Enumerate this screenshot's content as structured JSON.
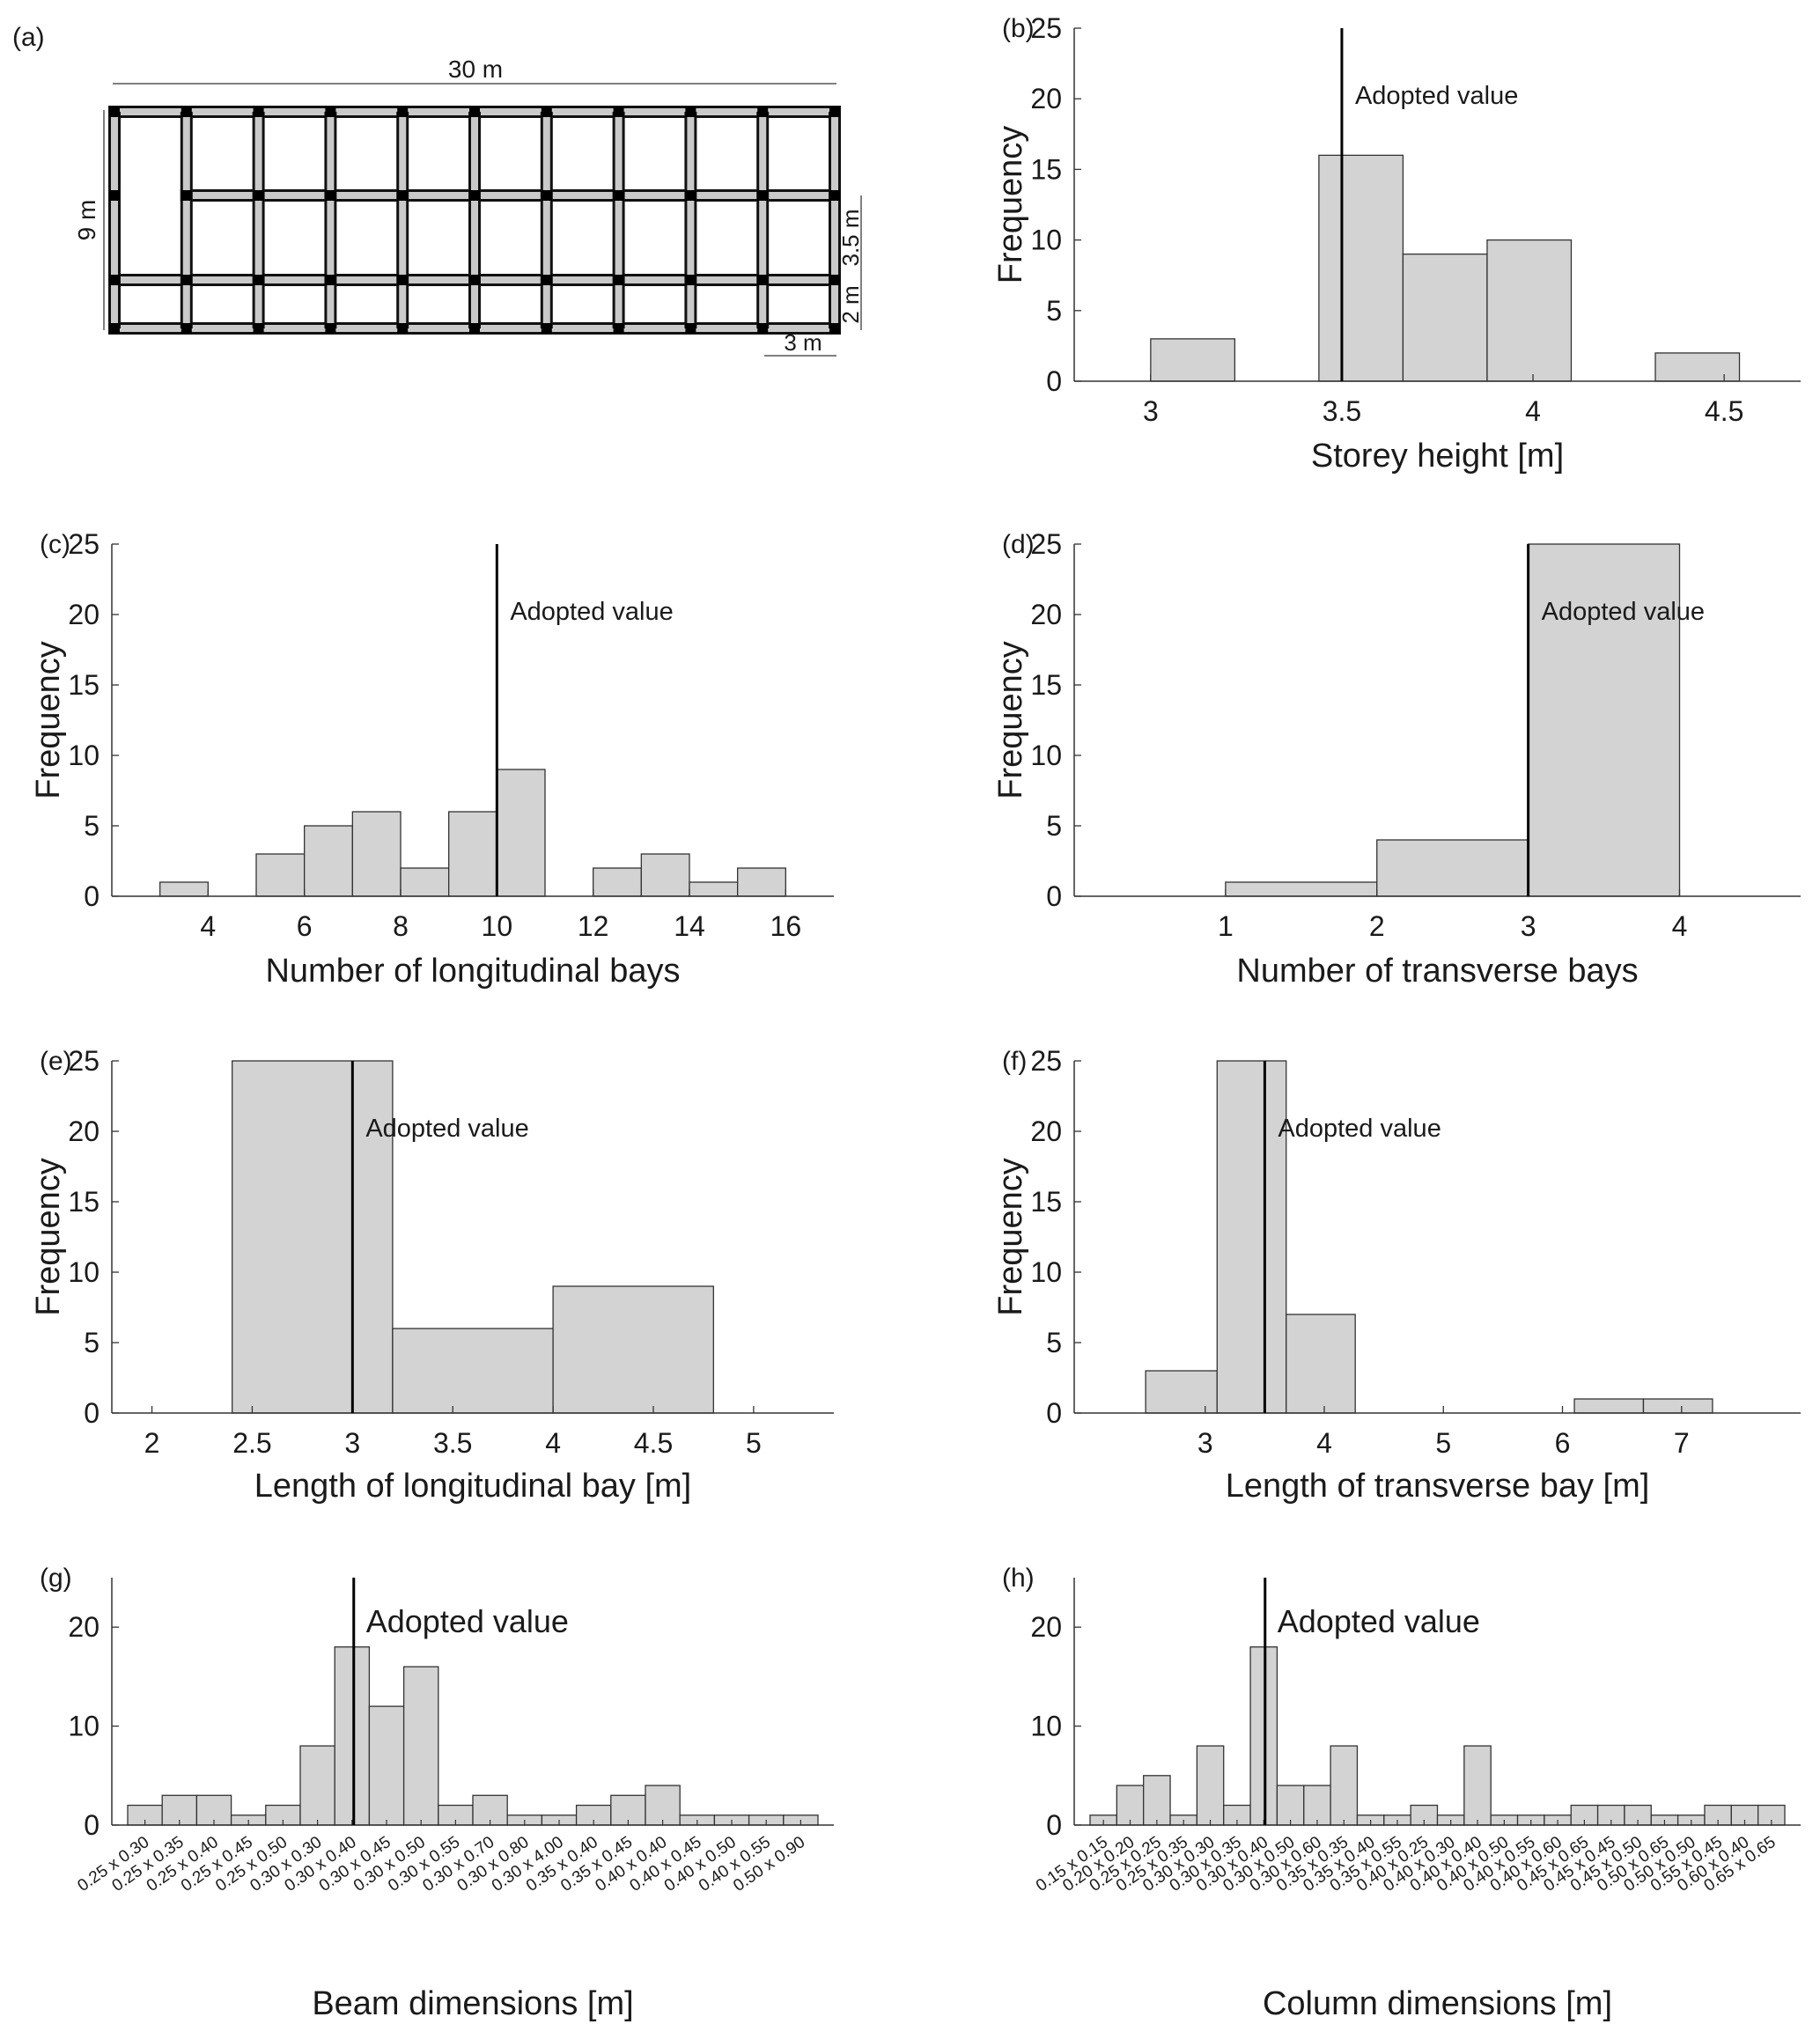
{
  "figure": {
    "plan": {
      "label": "(a)",
      "dim_total_length": "30 m",
      "dim_total_width": "9 m",
      "dim_bay_35": "3.5 m",
      "dim_bay_2": "2 m",
      "dim_bay_3": "3 m"
    }
  },
  "chart_data": [
    {
      "panel": "(b)",
      "type": "bar",
      "title": "",
      "xlabel": "Storey height [m]",
      "ylabel": "Frequency",
      "xlim": [
        2.8,
        4.7
      ],
      "ylim": [
        0,
        25
      ],
      "xticks": [
        3,
        3.5,
        4,
        4.5
      ],
      "yticks": [
        0,
        5,
        10,
        15,
        20,
        25
      ],
      "bins": [
        {
          "left": 3.0,
          "right": 3.22,
          "count": 3
        },
        {
          "left": 3.44,
          "right": 3.66,
          "count": 16
        },
        {
          "left": 3.66,
          "right": 3.88,
          "count": 9
        },
        {
          "left": 3.88,
          "right": 4.1,
          "count": 10
        },
        {
          "left": 4.32,
          "right": 4.54,
          "count": 2
        }
      ],
      "adopted_value": 3.5,
      "annotation": "Adopted value",
      "annotation_y": 20
    },
    {
      "panel": "(c)",
      "type": "bar",
      "title": "",
      "xlabel": "Number of longitudinal bays",
      "ylabel": "Frequency",
      "xlim": [
        2,
        17
      ],
      "ylim": [
        0,
        25
      ],
      "xticks": [
        4,
        6,
        8,
        10,
        12,
        14,
        16
      ],
      "yticks": [
        0,
        5,
        10,
        15,
        20,
        25
      ],
      "bins": [
        {
          "left": 3,
          "right": 4,
          "count": 1
        },
        {
          "left": 5,
          "right": 6,
          "count": 3
        },
        {
          "left": 6,
          "right": 7,
          "count": 5
        },
        {
          "left": 7,
          "right": 8,
          "count": 6
        },
        {
          "left": 8,
          "right": 9,
          "count": 2
        },
        {
          "left": 9,
          "right": 10,
          "count": 6
        },
        {
          "left": 10,
          "right": 11,
          "count": 9
        },
        {
          "left": 12,
          "right": 13,
          "count": 2
        },
        {
          "left": 13,
          "right": 14,
          "count": 3
        },
        {
          "left": 14,
          "right": 15,
          "count": 1
        },
        {
          "left": 15,
          "right": 16,
          "count": 2
        }
      ],
      "adopted_value": 10,
      "annotation": "Adopted value",
      "annotation_y": 20
    },
    {
      "panel": "(d)",
      "type": "bar",
      "title": "",
      "xlabel": "Number of transverse bays",
      "ylabel": "Frequency",
      "xlim": [
        0,
        4.8
      ],
      "ylim": [
        0,
        25
      ],
      "xticks": [
        1,
        2,
        3,
        4
      ],
      "yticks": [
        0,
        5,
        10,
        15,
        20,
        25
      ],
      "bins": [
        {
          "left": 1,
          "right": 2,
          "count": 1
        },
        {
          "left": 2,
          "right": 3,
          "count": 4
        },
        {
          "left": 3,
          "right": 4,
          "count": 25
        }
      ],
      "adopted_value": 3,
      "annotation": "Adopted value",
      "annotation_y": 20
    },
    {
      "panel": "(e)",
      "type": "bar",
      "title": "",
      "xlabel": "Length of longitudinal bay [m]",
      "ylabel": "Frequency",
      "xlim": [
        1.8,
        5.4
      ],
      "ylim": [
        0,
        25
      ],
      "xticks": [
        2,
        2.5,
        3,
        3.5,
        4,
        4.5,
        5
      ],
      "yticks": [
        0,
        5,
        10,
        15,
        20,
        25
      ],
      "bins": [
        {
          "left": 2.4,
          "right": 3.2,
          "count": 25
        },
        {
          "left": 3.2,
          "right": 4.0,
          "count": 6
        },
        {
          "left": 4.0,
          "right": 4.8,
          "count": 9
        }
      ],
      "adopted_value": 3,
      "annotation": "Adopted value",
      "annotation_y": 20
    },
    {
      "panel": "(f)",
      "type": "bar",
      "title": "",
      "xlabel": "Length of transverse bay [m]",
      "ylabel": "Frequency",
      "xlim": [
        1.9,
        8
      ],
      "ylim": [
        0,
        25
      ],
      "xticks": [
        3,
        4,
        5,
        6,
        7
      ],
      "yticks": [
        0,
        5,
        10,
        15,
        20,
        25
      ],
      "bins": [
        {
          "left": 2.5,
          "right": 3.1,
          "count": 3
        },
        {
          "left": 3.1,
          "right": 3.68,
          "count": 25
        },
        {
          "left": 3.68,
          "right": 4.26,
          "count": 7
        },
        {
          "left": 6.1,
          "right": 6.68,
          "count": 1
        },
        {
          "left": 6.68,
          "right": 7.26,
          "count": 1
        }
      ],
      "adopted_value": 3.5,
      "annotation": "Adopted value",
      "annotation_y": 20
    },
    {
      "panel": "(g)",
      "type": "bar",
      "title": "",
      "xlabel": "Beam dimensions [m]",
      "ylabel": "",
      "ylim": [
        0,
        25
      ],
      "yticks": [
        0,
        10,
        20
      ],
      "categories": [
        "0.25 x 0.30",
        "0.25 x 0.35",
        "0.25 x 0.40",
        "0.25 x 0.45",
        "0.25 x 0.50",
        "0.30 x 0.30",
        "0.30 x 0.40",
        "0.30 x 0.45",
        "0.30 x 0.50",
        "0.30 x 0.55",
        "0.30 x 0.70",
        "0.30 x 0.80",
        "0.30 x 4.00",
        "0.35 x 0.40",
        "0.35 x 0.45",
        "0.40 x 0.40",
        "0.40 x 0.45",
        "0.40 x 0.50",
        "0.40 x 0.55",
        "0.50 x 0.90"
      ],
      "values": [
        2,
        3,
        3,
        1,
        2,
        8,
        18,
        12,
        16,
        2,
        3,
        1,
        1,
        2,
        3,
        4,
        1,
        1,
        1,
        1
      ],
      "adopted_index": 6,
      "annotation": "Adopted value",
      "annotation_y": 20
    },
    {
      "panel": "(h)",
      "type": "bar",
      "title": "",
      "xlabel": "Column dimensions [m]",
      "ylabel": "",
      "ylim": [
        0,
        25
      ],
      "yticks": [
        0,
        10,
        20
      ],
      "categories": [
        "0.15 x 0.15",
        "0.20 x 0.20",
        "0.25 x 0.25",
        "0.25 x 0.35",
        "0.30 x 0.30",
        "0.30 x 0.35",
        "0.30 x 0.40",
        "0.30 x 0.50",
        "0.30 x 0.60",
        "0.35 x 0.35",
        "0.35 x 0.40",
        "0.35 x 0.55",
        "0.40 x 0.25",
        "0.40 x 0.30",
        "0.40 x 0.40",
        "0.40 x 0.50",
        "0.40 x 0.55",
        "0.40 x 0.60",
        "0.45 x 0.65",
        "0.45 x 0.45",
        "0.45 x 0.50",
        "0.50 x 0.65",
        "0.50 x 0.50",
        "0.55 x 0.45",
        "0.60 x 0.40",
        "0.65 x 0.65"
      ],
      "values": [
        1,
        4,
        5,
        1,
        8,
        2,
        18,
        4,
        4,
        8,
        1,
        1,
        2,
        1,
        8,
        1,
        1,
        1,
        2,
        2,
        2,
        1,
        1,
        2,
        2,
        2
      ],
      "adopted_index": 6,
      "annotation": "Adopted value",
      "annotation_y": 20
    }
  ]
}
